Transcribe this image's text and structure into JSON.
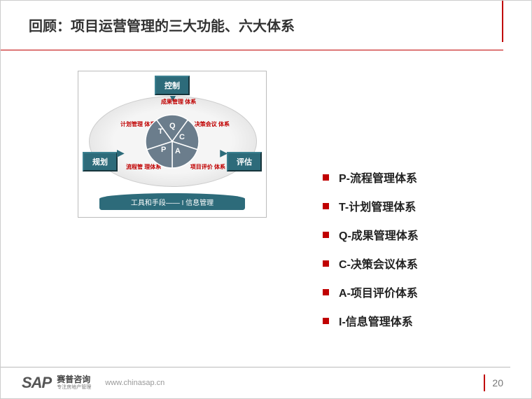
{
  "title": "回顾：项目运营管理的三大功能、六大体系",
  "diagram": {
    "tag_top": "控制",
    "tag_left": "规划",
    "tag_right": "评估",
    "platform_text": "工具和手段—— I 信息管理",
    "segments": [
      "T",
      "Q",
      "C",
      "A",
      "P"
    ],
    "segment_fill": "#6b7d8c",
    "segment_stroke": "#ffffff",
    "mini_top": "成果管理\n体系",
    "mini_tl": "计划管理\n体系",
    "mini_tr": "决策会议\n体系",
    "mini_bl": "流程管\n理体系",
    "mini_br": "项目评价\n体系",
    "tag_bg": "#2d6b7a",
    "ellipse_bg": "#eeeeee"
  },
  "bullets": [
    "P-流程管理体系",
    "T-计划管理体系",
    "Q-成果管理体系",
    "C-决策会议体系",
    "A-项目评价体系",
    "I-信息管理体系"
  ],
  "bullet_color": "#c00000",
  "footer": {
    "logo": "SAP",
    "logo_cn": "赛普咨询",
    "logo_sub": "专注房地产管理",
    "url": "www.chinasap.cn",
    "page": "20"
  },
  "accent": "#c00000"
}
